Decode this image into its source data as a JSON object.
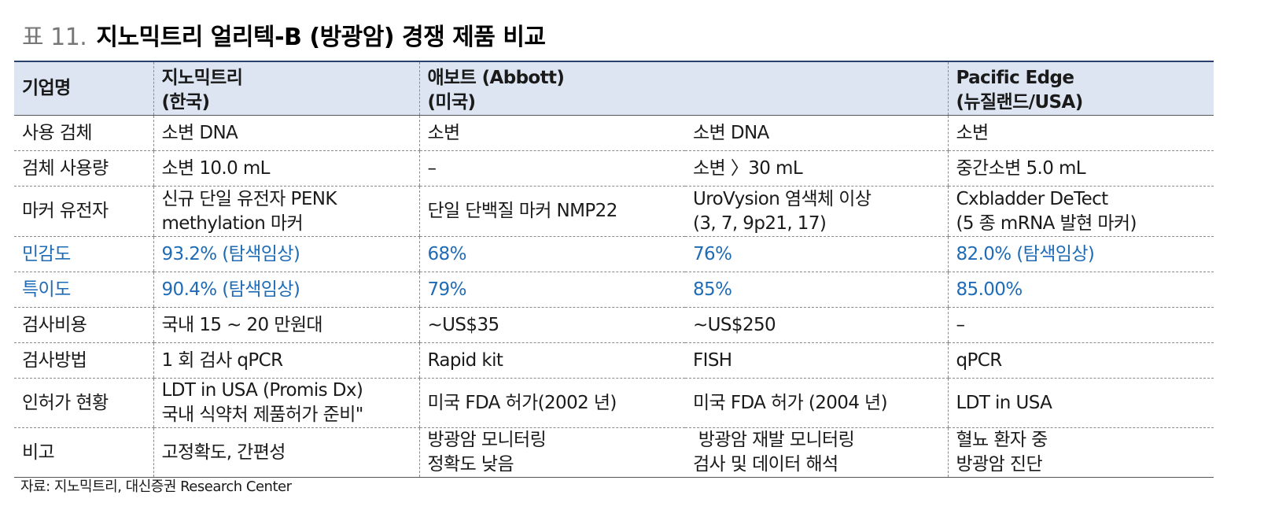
{
  "title": {
    "number": "표 11.",
    "text": "지노믹트리 얼리텍-B (방광암) 경쟁 제품 비교"
  },
  "header": {
    "label": "기업명",
    "col1_l1": "지노믹트리",
    "col1_l2": "(한국)",
    "col2_l1": "애보트 (Abbott)",
    "col2_l2": "(미국)",
    "col4_l1": "Pacific Edge",
    "col4_l2": "(뉴질랜드/USA)"
  },
  "rows": [
    {
      "label": "사용 검체",
      "c1": "소변 DNA",
      "c2": "소변",
      "c3": "소변 DNA",
      "c4": "소변"
    },
    {
      "label": "검체 사용량",
      "c1": "소변 10.0 mL",
      "c2": "–",
      "c3": "소변 〉30 mL",
      "c4": "중간소변 5.0 mL"
    },
    {
      "label": "마커 유전자",
      "c1_l1": "신규 단일 유전자 PENK",
      "c1_l2": "methylation 마커",
      "c2": "단일 단백질 마커 NMP22",
      "c3_l1": "UroVysion 염색체 이상",
      "c3_l2": "(3, 7, 9p21, 17)",
      "c4_l1": "Cxbladder DeTect",
      "c4_l2": "(5 종 mRNA 발현  마커)"
    },
    {
      "label": "민감도",
      "c1": "93.2% (탐색임상)",
      "c2": "68%",
      "c3": "76%",
      "c4": "82.0% (탐색임상)"
    },
    {
      "label": "특이도",
      "c1": "90.4% (탐색임상)",
      "c2": "79%",
      "c3": "85%",
      "c4": "85.00%"
    },
    {
      "label": "검사비용",
      "c1": "국내 15 ~ 20 만원대",
      "c2": "~US$35",
      "c3": "~US$250",
      "c4": "–"
    },
    {
      "label": "검사방법",
      "c1": "1 회 검사 qPCR",
      "c2": "Rapid kit",
      "c3": "FISH",
      "c4": "qPCR"
    },
    {
      "label": "인허가 현황",
      "c1_l1": "LDT in USA (Promis Dx)",
      "c1_l2": "국내 식약처 제품허가 준비\"",
      "c2": "미국 FDA 허가(2002 년)",
      "c3": "미국 FDA 허가 (2004 년)",
      "c4": "LDT in USA"
    },
    {
      "label": "비고",
      "c1": "고정확도, 간편성",
      "c2_l1": "방광암 모니터링",
      "c2_l2": "정확도 낮음",
      "c3_l1": " 방광암 재발 모니터링",
      "c3_l2": "검사 및 데이터 해석",
      "c4_l1": "혈뇨 환자 중",
      "c4_l2": "방광암 진단"
    }
  ],
  "source": "자료: 지노믹트리, 대신증권 Research Center",
  "colors": {
    "accent_blue": "#1f6bb5",
    "header_bg": "#dce5f1",
    "top_rule": "#2b3f6b"
  }
}
